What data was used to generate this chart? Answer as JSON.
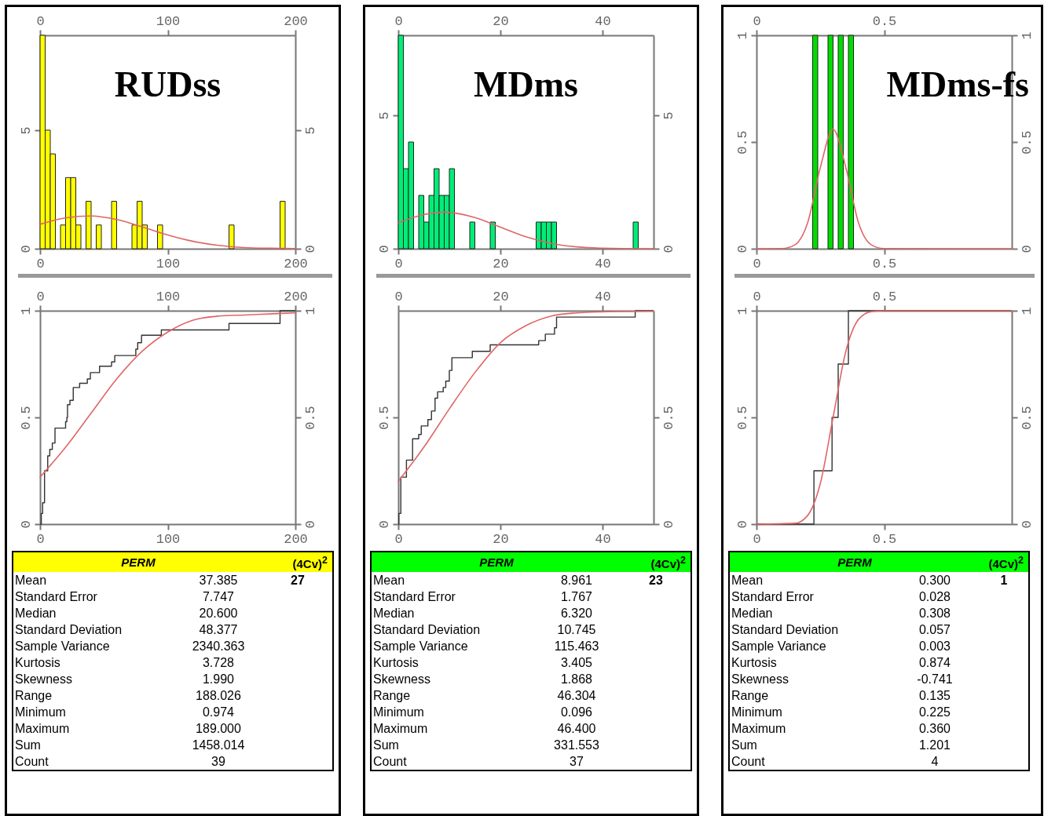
{
  "chart_data": [
    {
      "type": "histogram",
      "title": "RUDss",
      "color": "#ffff00",
      "bins": [
        0,
        4,
        8,
        12,
        16,
        20,
        24,
        28,
        32,
        36,
        40,
        44,
        48,
        52,
        56,
        60,
        64,
        68,
        72,
        76,
        80,
        84,
        88,
        92,
        96,
        100,
        104,
        108,
        112,
        116,
        120,
        124,
        128,
        132,
        136,
        140,
        144,
        148,
        152,
        156,
        160,
        164,
        168,
        172,
        176,
        180,
        184,
        188,
        192,
        196,
        200
      ],
      "values": [
        9,
        5,
        4,
        0,
        1,
        3,
        3,
        1,
        0,
        2,
        0,
        1,
        0,
        0,
        2,
        0,
        0,
        0,
        1,
        2,
        1,
        0,
        0,
        1,
        0,
        0,
        0,
        0,
        0,
        0,
        0,
        0,
        0,
        0,
        0,
        0,
        0,
        1,
        0,
        0,
        0,
        0,
        0,
        0,
        0,
        0,
        0,
        2,
        0,
        0
      ],
      "series": [
        {
          "type": "line",
          "color": "#e06666",
          "x": [
            0,
            20,
            40,
            60,
            80,
            100,
            120,
            140,
            160,
            180,
            200
          ],
          "values": [
            1.03,
            1.3,
            1.38,
            1.23,
            0.92,
            0.58,
            0.31,
            0.14,
            0.05,
            0.02,
            0.01
          ]
        }
      ],
      "xlim": [
        0,
        200
      ],
      "xticks": [
        0,
        100,
        200
      ],
      "x2lim": [
        0,
        200
      ],
      "x2ticks": [
        0,
        100,
        200
      ],
      "ylim": [
        0,
        9
      ],
      "yticks": [
        0,
        5
      ],
      "y2lim": [
        0,
        9
      ],
      "y2ticks": [
        0,
        5
      ]
    },
    {
      "type": "step",
      "series": [
        {
          "type": "step",
          "color": "#333333",
          "x": [
            0,
            0.974,
            2,
            3.5,
            6,
            7.6,
            9.6,
            11.7,
            20,
            21,
            21.5,
            23.4,
            26,
            31,
            37,
            39.4,
            46.6,
            56,
            58.5,
            75,
            76.5,
            79.5,
            95,
            148,
            188,
            200
          ],
          "values": [
            0,
            0.05,
            0.1,
            0.25,
            0.32,
            0.35,
            0.38,
            0.45,
            0.48,
            0.5,
            0.56,
            0.58,
            0.64,
            0.66,
            0.68,
            0.71,
            0.74,
            0.76,
            0.79,
            0.82,
            0.85,
            0.885,
            0.91,
            0.94,
            1,
            1
          ]
        },
        {
          "type": "line",
          "color": "#e06666",
          "x": [
            0,
            20,
            40,
            60,
            80,
            100,
            120,
            140,
            160,
            180,
            200
          ],
          "values": [
            0.22,
            0.36,
            0.52,
            0.68,
            0.81,
            0.9,
            0.956,
            0.975,
            0.98,
            0.985,
            0.99
          ]
        }
      ],
      "xlim": [
        0,
        200
      ],
      "xticks": [
        0,
        100,
        200
      ],
      "x2lim": [
        0,
        200
      ],
      "x2ticks": [
        0,
        100,
        200
      ],
      "ylim": [
        0,
        1
      ],
      "yticks": [
        0,
        0.5,
        1
      ],
      "y2lim": [
        0,
        1
      ],
      "y2ticks": [
        0,
        0.5,
        1
      ]
    },
    {
      "type": "other",
      "title": "PERM",
      "subtitle": "(4Cv)$^{2}$",
      "color": "#ffff00",
      "categories": [
        "Mean",
        "Standard Error",
        "Median",
        "Standard Deviation",
        "Sample Variance",
        "Kurtosis",
        "Skewness",
        "Range",
        "Minimum",
        "Maximum",
        "Sum",
        "Count"
      ],
      "value_labels": [
        "37.385",
        "7.747",
        "20.600",
        "48.377",
        "2340.363",
        "3.728",
        "1.990",
        "188.026",
        "0.974",
        "189.000",
        "1458.014",
        "39"
      ],
      "annotations": [
        "27"
      ]
    },
    {
      "type": "histogram",
      "title": "MDms",
      "color": "#00ee77",
      "bins": [
        0,
        1,
        2,
        3,
        4,
        5,
        6,
        7,
        8,
        9,
        10,
        11,
        12,
        13,
        14,
        15,
        16,
        17,
        18,
        19,
        20,
        21,
        22,
        23,
        24,
        25,
        26,
        27,
        28,
        29,
        30,
        31,
        32,
        33,
        34,
        35,
        36,
        37,
        38,
        39,
        40,
        41,
        42,
        43,
        44,
        45,
        46,
        47,
        48,
        49,
        50
      ],
      "values": [
        8,
        3,
        4,
        0,
        2,
        1,
        2,
        3,
        2,
        2,
        3,
        0,
        0,
        0,
        1,
        0,
        0,
        0,
        1,
        0,
        0,
        0,
        0,
        0,
        0,
        0,
        0,
        1,
        1,
        1,
        1,
        0,
        0,
        0,
        0,
        0,
        0,
        0,
        0,
        0,
        0,
        0,
        0,
        0,
        0,
        0,
        1,
        0,
        0,
        0
      ],
      "series": [
        {
          "type": "line",
          "color": "#e06666",
          "x": [
            0,
            5,
            9,
            15,
            20,
            25,
            30,
            35,
            40,
            50
          ],
          "values": [
            0.97,
            1.28,
            1.37,
            1.17,
            0.81,
            0.45,
            0.2,
            0.07,
            0.02,
            0
          ]
        }
      ],
      "xlim": [
        0,
        50
      ],
      "xticks": [
        0,
        20,
        40
      ],
      "x2lim": [
        0,
        50
      ],
      "x2ticks": [
        0,
        20,
        40
      ],
      "ylim": [
        0,
        8
      ],
      "yticks": [
        0,
        5
      ],
      "y2lim": [
        0,
        8
      ],
      "y2ticks": [
        0,
        5
      ]
    },
    {
      "type": "step",
      "series": [
        {
          "type": "step",
          "color": "#333333",
          "x": [
            0,
            0.1,
            0.5,
            1.6,
            2.8,
            4,
            4.5,
            5.8,
            6.5,
            7.2,
            7.7,
            8.8,
            9.3,
            10,
            10.5,
            14.5,
            18,
            27.5,
            28.8,
            30.6,
            31,
            46.4,
            50
          ],
          "values": [
            0,
            0.05,
            0.22,
            0.3,
            0.4,
            0.42,
            0.46,
            0.49,
            0.53,
            0.59,
            0.62,
            0.64,
            0.67,
            0.72,
            0.78,
            0.81,
            0.84,
            0.86,
            0.89,
            0.92,
            0.97,
            1,
            1
          ]
        },
        {
          "type": "line",
          "color": "#e06666",
          "x": [
            0,
            5,
            10,
            15,
            20,
            25,
            30,
            35,
            40,
            50
          ],
          "values": [
            0.2,
            0.36,
            0.54,
            0.71,
            0.85,
            0.93,
            0.975,
            0.99,
            0.995,
            0.998
          ]
        }
      ],
      "xlim": [
        0,
        50
      ],
      "xticks": [
        0,
        20,
        40
      ],
      "x2lim": [
        0,
        50
      ],
      "x2ticks": [
        0,
        20,
        40
      ],
      "ylim": [
        0,
        1
      ],
      "yticks": [
        0,
        0.5
      ],
      "y2lim": [
        0,
        1
      ],
      "y2ticks": [
        0,
        0.5
      ]
    },
    {
      "type": "other",
      "title": "PERM",
      "subtitle": "(4Cv)$^{2}$",
      "color": "#00ff00",
      "categories": [
        "Mean",
        "Standard Error",
        "Median",
        "Standard Deviation",
        "Sample Variance",
        "Kurtosis",
        "Skewness",
        "Range",
        "Minimum",
        "Maximum",
        "Sum",
        "Count"
      ],
      "value_labels": [
        "8.961",
        "1.767",
        "6.320",
        "10.745",
        "115.463",
        "3.405",
        "1.868",
        "46.304",
        "0.096",
        "46.400",
        "331.553",
        "37"
      ],
      "annotations": [
        "23"
      ]
    },
    {
      "type": "histogram",
      "title": "MDms-fs",
      "color": "#00dd00",
      "bins": [
        0,
        0.02,
        0.04,
        0.06,
        0.08,
        0.1,
        0.12,
        0.14,
        0.16,
        0.18,
        0.2,
        0.22,
        0.24,
        0.26,
        0.28,
        0.3,
        0.32,
        0.34,
        0.36,
        0.38,
        0.4,
        0.42,
        0.44,
        0.46,
        0.48,
        0.5,
        0.52,
        0.54,
        0.56,
        0.58,
        0.6,
        0.62,
        0.64,
        0.66,
        0.68,
        0.7,
        0.72,
        0.74,
        0.76,
        0.78,
        0.8,
        0.82,
        0.84,
        0.86,
        0.88,
        0.9,
        0.92,
        0.94,
        0.96,
        0.98,
        1
      ],
      "values": [
        0,
        0,
        0,
        0,
        0,
        0,
        0,
        0,
        0,
        0,
        0,
        1,
        0,
        0,
        1,
        0,
        1,
        0,
        1,
        0,
        0,
        0,
        0,
        0,
        0,
        0,
        0,
        0,
        0,
        0,
        0,
        0,
        0,
        0,
        0,
        0,
        0,
        0,
        0,
        0,
        0,
        0,
        0,
        0,
        0,
        0,
        0,
        0,
        0,
        0
      ],
      "series": [
        {
          "type": "line",
          "color": "#e06666",
          "x": [
            0,
            0.1,
            0.15,
            0.2,
            0.25,
            0.3,
            0.35,
            0.4,
            0.45,
            0.5,
            1
          ],
          "values": [
            0,
            0.001,
            0.018,
            0.12,
            0.38,
            0.56,
            0.38,
            0.12,
            0.018,
            0.001,
            0
          ]
        }
      ],
      "xlim": [
        0,
        1
      ],
      "xticks": [
        0,
        0.5
      ],
      "x2lim": [
        0,
        1
      ],
      "x2ticks": [
        0,
        0.5
      ],
      "ylim": [
        0,
        1
      ],
      "yticks": [
        0,
        0.5,
        1
      ],
      "y2lim": [
        0,
        1
      ],
      "y2ticks": [
        0,
        0.5,
        1
      ]
    },
    {
      "type": "step",
      "series": [
        {
          "type": "step",
          "color": "#333333",
          "x": [
            0,
            0.225,
            0.296,
            0.32,
            0.36,
            1
          ],
          "values": [
            0,
            0.25,
            0.5,
            0.75,
            1,
            1
          ]
        },
        {
          "type": "line",
          "color": "#e06666",
          "x": [
            0,
            0.15,
            0.2,
            0.25,
            0.3,
            0.35,
            0.4,
            0.45,
            0.5,
            1
          ],
          "values": [
            0,
            0.004,
            0.04,
            0.19,
            0.5,
            0.81,
            0.96,
            0.996,
            1,
            1
          ]
        }
      ],
      "xlim": [
        0,
        1
      ],
      "xticks": [
        0,
        0.5
      ],
      "x2lim": [
        0,
        1
      ],
      "x2ticks": [
        0,
        0.5
      ],
      "ylim": [
        0,
        1
      ],
      "yticks": [
        0,
        0.5,
        1
      ],
      "y2lim": [
        0,
        1
      ],
      "y2ticks": [
        0,
        0.5,
        1
      ]
    },
    {
      "type": "other",
      "title": "PERM",
      "subtitle": "(4Cv)$^{2}$",
      "color": "#00ff00",
      "categories": [
        "Mean",
        "Standard Error",
        "Median",
        "Standard Deviation",
        "Sample Variance",
        "Kurtosis",
        "Skewness",
        "Range",
        "Minimum",
        "Maximum",
        "Sum",
        "Count"
      ],
      "value_labels": [
        "0.300",
        "0.028",
        "0.308",
        "0.057",
        "0.003",
        "0.874",
        "-0.741",
        "0.135",
        "0.225",
        "0.360",
        "1.201",
        "4"
      ],
      "annotations": [
        "1"
      ]
    }
  ]
}
